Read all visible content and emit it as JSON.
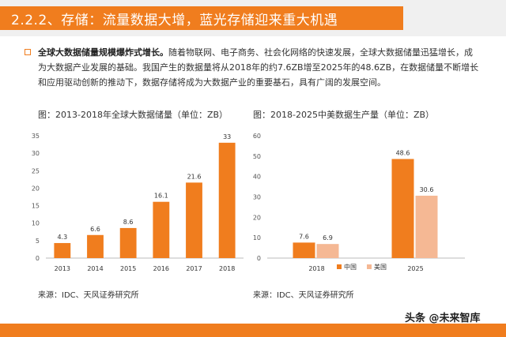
{
  "header": {
    "title": "2.2.2、存储：流量数据大增，蓝光存储迎来重大机遇"
  },
  "intro": {
    "bold": "全球大数据储量规模爆炸式增长。",
    "text": "随着物联网、电子商务、社会化网络的快速发展，全球大数据储量迅猛增长，成为大数据产业发展的基础。我国产生的数据量将从2018年的约7.6ZB增至2025年的48.6ZB，在数据储量不断增长和应用驱动创新的推动下，数据存储将成为大数据产业的重要基石，具有广阔的发展空间。"
  },
  "left_chart": {
    "title": "图：2013-2018年全球大数据储量（单位：ZB）",
    "source": "来源：IDC、天风证券研究所"
  },
  "right_chart": {
    "title": "图：2018-2025中美数据生产量（单位：ZB）",
    "source": "来源：IDC、天风证券研究所"
  },
  "watermark": "头条 @未来智库",
  "colors": {
    "accent": "#f07d1e",
    "china": "#f07d1e",
    "usa": "#f5b894"
  },
  "chart_data": [
    {
      "type": "bar",
      "title": "图：2013-2018年全球大数据储量（单位：ZB）",
      "categories": [
        "2013",
        "2014",
        "2015",
        "2016",
        "2017",
        "2018"
      ],
      "values": [
        4.3,
        6.6,
        8.6,
        16.1,
        21.6,
        33
      ],
      "value_labels": [
        "4.3",
        "6.6",
        "8.6",
        "16.1",
        "21.6",
        "33"
      ],
      "ylim": [
        0,
        35
      ],
      "yticks": [
        "0",
        "5",
        "10",
        "15",
        "20",
        "25",
        "30",
        "35"
      ],
      "grid": false
    },
    {
      "type": "bar",
      "title": "图：2018-2025中美数据生产量（单位：ZB）",
      "categories": [
        "2018",
        "2025"
      ],
      "series": [
        {
          "name": "中国",
          "values": [
            7.6,
            48.6
          ],
          "value_labels": [
            "7.6",
            "48.6"
          ]
        },
        {
          "name": "美国",
          "values": [
            6.9,
            30.6
          ],
          "value_labels": [
            "6.9",
            "30.6"
          ]
        }
      ],
      "ylim": [
        0,
        60
      ],
      "yticks": [
        "0",
        "10",
        "20",
        "30",
        "40",
        "50",
        "60"
      ],
      "legend": "bottom",
      "grid": false
    }
  ]
}
